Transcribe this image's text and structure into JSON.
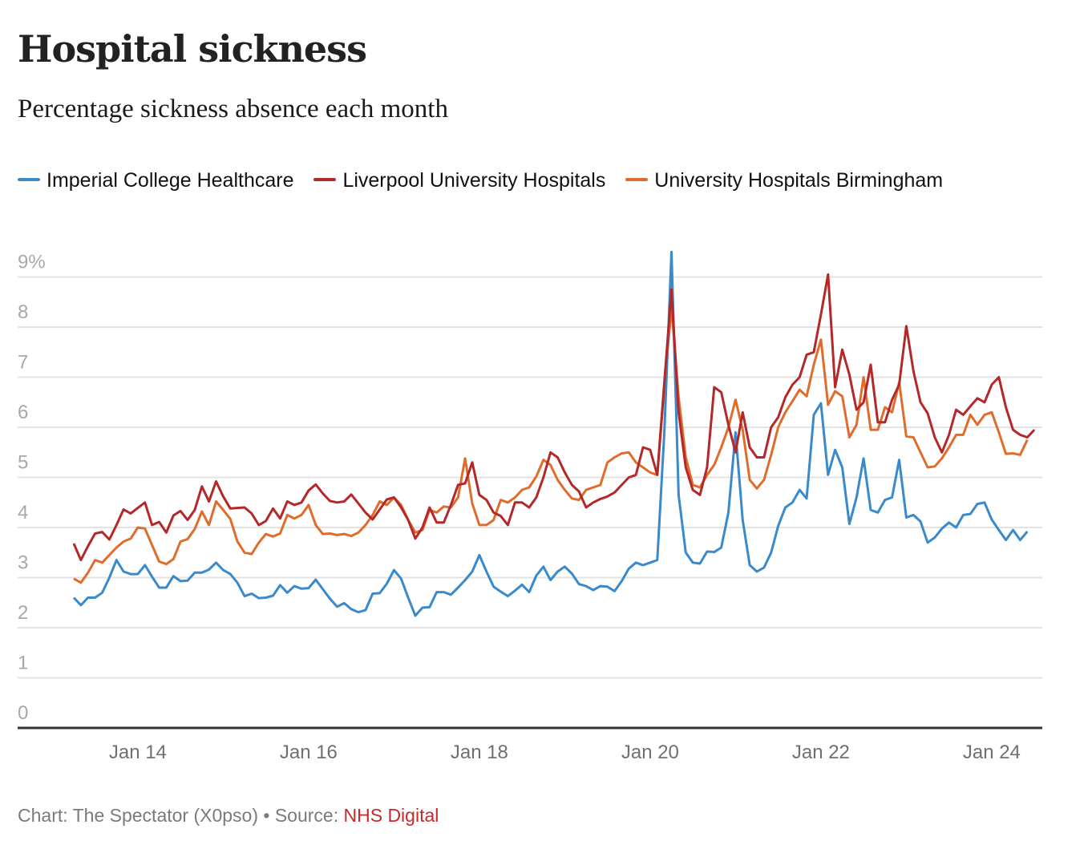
{
  "header": {
    "title": "Hospital sickness",
    "subtitle": "Percentage sickness absence each month"
  },
  "footer": {
    "credit": "Chart: The Spectator (X0pso) • Source: ",
    "source_link": "NHS Digital"
  },
  "chart_data": {
    "type": "line",
    "title": "Hospital sickness",
    "subtitle": "Percentage sickness absence each month",
    "xlabel": "",
    "ylabel": "",
    "ylim": [
      0,
      9.4
    ],
    "y_ticks": [
      0,
      1,
      2,
      3,
      4,
      5,
      6,
      7,
      8,
      9
    ],
    "y_tick_labels": [
      "0",
      "1",
      "2",
      "3",
      "4",
      "5",
      "6",
      "7",
      "8",
      "9%"
    ],
    "x_start": "Apr 2013",
    "x_end": "Jun 2024",
    "x_frequency": "monthly",
    "x_ticks": [
      "Jan 14",
      "Jan 16",
      "Jan 18",
      "Jan 20",
      "Jan 22",
      "Jan 24"
    ],
    "x_tick_month_index": [
      9,
      33,
      57,
      81,
      105,
      129
    ],
    "grid": true,
    "legend_position": "top-left",
    "series": [
      {
        "name": "Imperial College Healthcare",
        "color": "#3a8acb",
        "values": [
          2.6,
          2.45,
          2.6,
          2.6,
          2.7,
          3.0,
          3.35,
          3.12,
          3.07,
          3.07,
          3.25,
          3.02,
          2.8,
          2.8,
          3.03,
          2.93,
          2.94,
          3.1,
          3.1,
          3.16,
          3.3,
          3.15,
          3.07,
          2.9,
          2.63,
          2.68,
          2.59,
          2.6,
          2.64,
          2.85,
          2.7,
          2.83,
          2.78,
          2.79,
          2.96,
          2.77,
          2.58,
          2.42,
          2.49,
          2.37,
          2.31,
          2.35,
          2.68,
          2.69,
          2.88,
          3.15,
          2.98,
          2.6,
          2.24,
          2.4,
          2.41,
          2.71,
          2.71,
          2.66,
          2.8,
          2.95,
          3.12,
          3.45,
          3.12,
          2.82,
          2.72,
          2.63,
          2.74,
          2.86,
          2.71,
          3.04,
          3.22,
          2.95,
          3.12,
          3.22,
          3.08,
          2.87,
          2.83,
          2.75,
          2.83,
          2.82,
          2.73,
          2.93,
          3.18,
          3.3,
          3.25,
          3.3,
          3.35,
          5.9,
          9.5,
          4.65,
          3.5,
          3.3,
          3.28,
          3.52,
          3.51,
          3.6,
          4.3,
          5.9,
          4.15,
          3.25,
          3.12,
          3.2,
          3.5,
          4.03,
          4.4,
          4.5,
          4.75,
          4.58,
          6.25,
          6.48,
          5.05,
          5.55,
          5.2,
          4.07,
          4.6,
          5.38,
          4.35,
          4.3,
          4.55,
          4.6,
          5.35,
          4.2,
          4.25,
          4.12,
          3.7,
          3.8,
          3.98,
          4.1,
          4.0,
          4.25,
          4.27,
          4.47,
          4.5,
          4.16,
          3.95,
          3.75,
          3.95,
          3.75,
          3.92
        ]
      },
      {
        "name": "Liverpool University Hospitals",
        "color": "#b5282a",
        "values": [
          3.68,
          3.35,
          3.63,
          3.88,
          3.91,
          3.76,
          4.05,
          4.36,
          4.28,
          4.39,
          4.5,
          4.05,
          4.11,
          3.9,
          4.24,
          4.33,
          4.15,
          4.35,
          4.82,
          4.52,
          4.92,
          4.62,
          4.38,
          4.39,
          4.4,
          4.28,
          4.05,
          4.13,
          4.38,
          4.18,
          4.52,
          4.45,
          4.5,
          4.74,
          4.86,
          4.68,
          4.53,
          4.5,
          4.52,
          4.66,
          4.48,
          4.3,
          4.16,
          4.36,
          4.56,
          4.6,
          4.4,
          4.15,
          3.78,
          4.0,
          4.4,
          4.1,
          4.1,
          4.45,
          4.85,
          4.88,
          5.3,
          4.65,
          4.55,
          4.3,
          4.23,
          4.05,
          4.5,
          4.5,
          4.4,
          4.6,
          5.0,
          5.5,
          5.4,
          5.1,
          4.85,
          4.72,
          4.4,
          4.5,
          4.57,
          4.62,
          4.7,
          4.85,
          5.0,
          5.05,
          5.6,
          5.55,
          5.05,
          6.9,
          8.75,
          6.3,
          5.2,
          4.75,
          4.65,
          5.2,
          6.8,
          6.7,
          6.05,
          5.5,
          6.3,
          5.6,
          5.4,
          5.4,
          6.0,
          6.2,
          6.6,
          6.85,
          7.0,
          7.45,
          7.5,
          8.25,
          9.05,
          6.8,
          7.55,
          7.05,
          6.35,
          6.5,
          7.25,
          6.1,
          6.1,
          6.55,
          6.85,
          8.02,
          7.12,
          6.5,
          6.28,
          5.8,
          5.5,
          5.85,
          6.35,
          6.25,
          6.42,
          6.58,
          6.5,
          6.85,
          7.0,
          6.4,
          5.95,
          5.85,
          5.8,
          5.95
        ]
      },
      {
        "name": "University Hospitals Birmingham",
        "color": "#e06c2c",
        "values": [
          2.98,
          2.9,
          3.1,
          3.35,
          3.3,
          3.45,
          3.6,
          3.72,
          3.78,
          4.0,
          3.98,
          3.65,
          3.32,
          3.27,
          3.37,
          3.72,
          3.77,
          3.97,
          4.32,
          4.05,
          4.52,
          4.35,
          4.17,
          3.72,
          3.5,
          3.47,
          3.7,
          3.87,
          3.82,
          3.88,
          4.25,
          4.18,
          4.25,
          4.45,
          4.05,
          3.87,
          3.88,
          3.85,
          3.87,
          3.83,
          3.9,
          4.05,
          4.25,
          4.52,
          4.45,
          4.6,
          4.45,
          4.15,
          3.9,
          3.95,
          4.35,
          4.3,
          4.42,
          4.4,
          4.6,
          5.38,
          4.48,
          4.05,
          4.05,
          4.15,
          4.55,
          4.5,
          4.6,
          4.75,
          4.8,
          5.02,
          5.35,
          5.25,
          4.95,
          4.75,
          4.58,
          4.55,
          4.75,
          4.8,
          4.85,
          5.3,
          5.4,
          5.48,
          5.5,
          5.3,
          5.2,
          5.1,
          5.05,
          6.8,
          8.4,
          6.6,
          5.4,
          4.85,
          4.8,
          5.05,
          5.25,
          5.6,
          6.0,
          6.55,
          5.95,
          4.95,
          4.78,
          4.95,
          5.45,
          6.0,
          6.3,
          6.52,
          6.75,
          6.62,
          7.25,
          7.75,
          6.45,
          6.72,
          6.62,
          5.8,
          6.05,
          7.0,
          5.95,
          5.95,
          6.4,
          6.3,
          6.9,
          5.82,
          5.8,
          5.5,
          5.2,
          5.22,
          5.38,
          5.6,
          5.85,
          5.85,
          6.25,
          6.05,
          6.25,
          6.3,
          5.9,
          5.47,
          5.48,
          5.45,
          5.75
        ]
      }
    ]
  }
}
